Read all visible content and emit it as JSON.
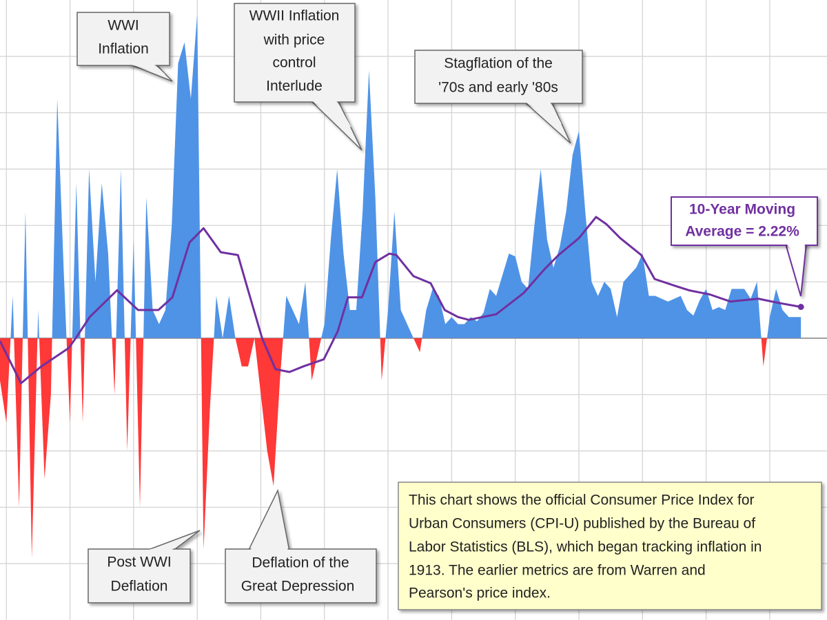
{
  "chart_data": {
    "type": "area",
    "xlim": [
      1889,
      2019
    ],
    "ylim": [
      -20,
      24
    ],
    "xticks": [
      1890,
      1900,
      1910,
      1920,
      1930,
      1940,
      1950,
      1960,
      1970,
      1980,
      1990,
      2000,
      2010
    ],
    "yticks": [
      -16,
      -12,
      -8,
      -4,
      0,
      4,
      8,
      12,
      16,
      20
    ],
    "grid": true,
    "series": [
      {
        "color": "#4f93e6",
        "negative_color": "#ff3838",
        "x": [
          1889,
          1890,
          1891,
          1892,
          1893,
          1894,
          1895,
          1896,
          1897,
          1898,
          1899,
          1900,
          1901,
          1902,
          1903,
          1904,
          1905,
          1906,
          1907,
          1908,
          1909,
          1910,
          1911,
          1912,
          1913,
          1914,
          1915,
          1916,
          1917,
          1918,
          1919,
          1920,
          1921,
          1922,
          1923,
          1924,
          1925,
          1926,
          1927,
          1928,
          1929,
          1930,
          1931,
          1932,
          1933,
          1934,
          1935,
          1936,
          1937,
          1938,
          1939,
          1940,
          1941,
          1942,
          1943,
          1944,
          1945,
          1946,
          1947,
          1948,
          1949,
          1950,
          1951,
          1952,
          1953,
          1954,
          1955,
          1956,
          1957,
          1958,
          1959,
          1960,
          1961,
          1962,
          1963,
          1964,
          1965,
          1966,
          1967,
          1968,
          1969,
          1970,
          1971,
          1972,
          1973,
          1974,
          1975,
          1976,
          1977,
          1978,
          1979,
          1980,
          1981,
          1982,
          1983,
          1984,
          1985,
          1986,
          1987,
          1988,
          1989,
          1990,
          1991,
          1992,
          1993,
          1994,
          1995,
          1996,
          1997,
          1998,
          1999,
          2000,
          2001,
          2002,
          2003,
          2004,
          2005,
          2006,
          2007,
          2008,
          2009,
          2010,
          2011,
          2012,
          2013,
          2014.9
        ],
        "values": [
          -3,
          -6,
          3,
          -12,
          9,
          -15.6,
          2,
          -10,
          -4,
          17,
          5,
          -6,
          11,
          -6,
          12,
          4,
          11,
          6,
          -4,
          12,
          -8,
          7,
          -12,
          10,
          2,
          1,
          2,
          8,
          19.5,
          21,
          17,
          23,
          -15,
          -5,
          3,
          0,
          3,
          0,
          -2,
          -2,
          0,
          -4,
          -8,
          -10.5,
          -3,
          3,
          2,
          1,
          4,
          -3,
          -1,
          1,
          7,
          12,
          6,
          2,
          2,
          9,
          19,
          10,
          -3,
          2,
          9,
          2,
          1,
          0,
          -1,
          2,
          3.5,
          3,
          1,
          1.5,
          1,
          1,
          1.5,
          1.2,
          1.8,
          3.5,
          3,
          4.5,
          6,
          5.8,
          4,
          3.5,
          8,
          12,
          7,
          5,
          6.5,
          9,
          13,
          14.7,
          9,
          4,
          3,
          4,
          3.5,
          1.5,
          4,
          4.5,
          5,
          6,
          3,
          3,
          2.8,
          2.6,
          2.8,
          3,
          2,
          1.6,
          2.7,
          3.5,
          2,
          2.2,
          2,
          3.5,
          3.5,
          3.5,
          2.8,
          4,
          -2,
          1.5,
          3.5,
          2,
          1.5,
          1.5
        ]
      },
      {
        "type": "line",
        "color": "#7030a0",
        "x": [
          1889,
          1892.3,
          1895.5,
          1899.8,
          1900.9,
          1903.1,
          1907.4,
          1910.7,
          1913.9,
          1916.1,
          1918.8,
          1921,
          1923.7,
          1926.4,
          1928,
          1930.2,
          1932.3,
          1934.5,
          1936.7,
          1939.9,
          1942.1,
          1943.7,
          1945.9,
          1948,
          1950.2,
          1951.3,
          1954,
          1956.7,
          1958.9,
          1961,
          1962.7,
          1967,
          1971.3,
          1974.6,
          1976.8,
          1980,
          1982.7,
          1984.3,
          1986.5,
          1989.8,
          1991.9,
          1995.2,
          1997.3,
          2000.6,
          2003.8,
          2008.2,
          2011.4,
          2014.9
        ],
        "values": [
          -0.2,
          -3.2,
          -2,
          -0.7,
          0,
          1.5,
          3.4,
          2,
          2,
          2.9,
          6.8,
          7.8,
          6.1,
          5.9,
          3.4,
          0,
          -2.2,
          -2.4,
          -2,
          -1.5,
          0.5,
          2.9,
          2.9,
          5.4,
          6,
          5.9,
          4.4,
          3.9,
          2,
          1.5,
          1.3,
          1.7,
          3.2,
          4.9,
          5.9,
          7.1,
          8.6,
          8.1,
          7.1,
          5.9,
          4.2,
          3.7,
          3.4,
          3.1,
          2.6,
          2.8,
          2.5,
          2.22
        ]
      }
    ],
    "annotations": [
      {
        "lines": [
          "WWI",
          "Inflation"
        ]
      },
      {
        "lines": [
          "WWII Inflation",
          "with price",
          "control",
          "Interlude"
        ]
      },
      {
        "lines": [
          "Stagflation of the",
          "'70s and early '80s"
        ]
      },
      {
        "lines": [
          "10-Year Moving",
          "Average = 2.22%"
        ]
      },
      {
        "lines": [
          "Post WWI",
          "Deflation"
        ]
      },
      {
        "lines": [
          "Deflation of the",
          "Great Depression"
        ]
      },
      {
        "lines": [
          "This chart shows the official Consumer Price Index for",
          "Urban Consumers (CPI-U) published by the Bureau of",
          "Labor Statistics (BLS), which began tracking inflation in",
          "1913.  The earlier metrics are from Warren and",
          "Pearson's  price index."
        ]
      }
    ]
  }
}
